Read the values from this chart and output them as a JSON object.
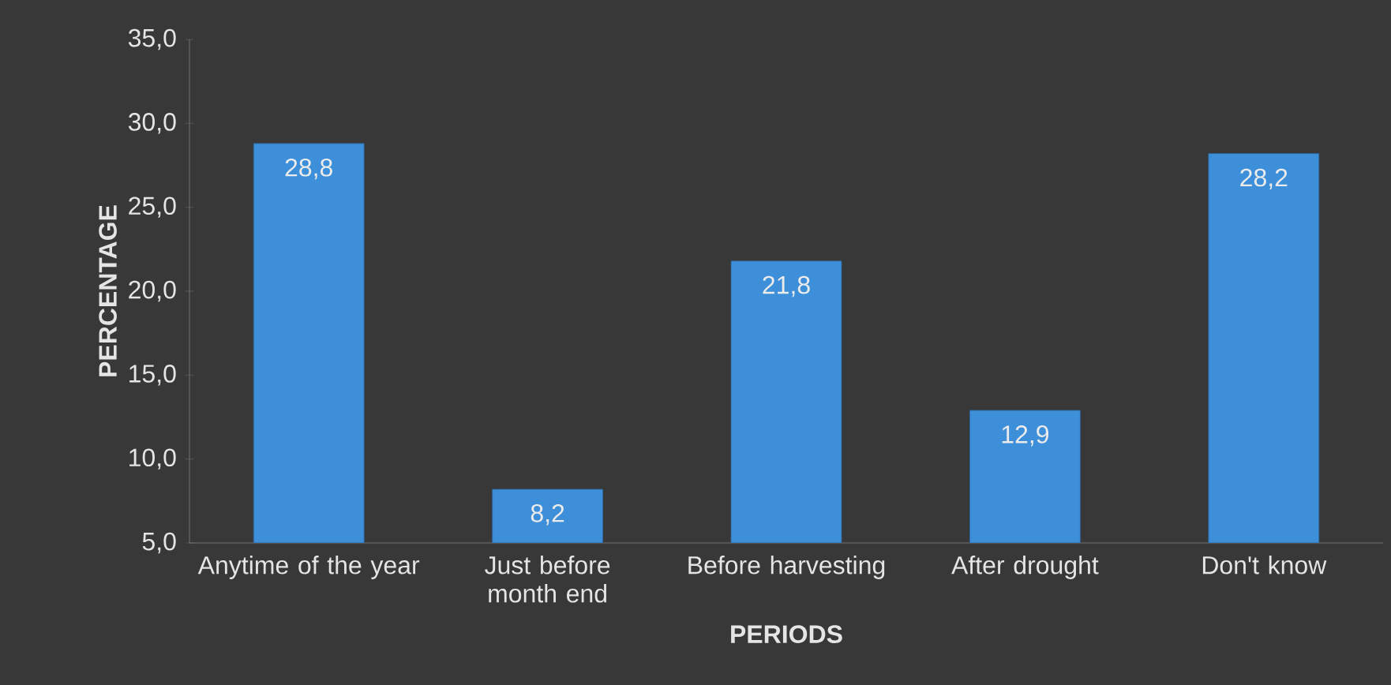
{
  "chart_data": {
    "type": "bar",
    "xlabel": "PERIODS",
    "ylabel": "PERCENTAGE",
    "categories": [
      "Anytime of the year",
      "Just before month end",
      "Before harvesting",
      "After drought",
      "Don't know"
    ],
    "values": [
      28.8,
      8.2,
      21.8,
      12.9,
      28.2
    ],
    "value_labels": [
      "28,8",
      "8,2",
      "21,8",
      "12,9",
      "28,2"
    ],
    "color": "#3d8fd9",
    "ylim": [
      5,
      35
    ],
    "yticks": [
      {
        "value": 5,
        "label": "5,0"
      },
      {
        "value": 10,
        "label": "10,0"
      },
      {
        "value": 15,
        "label": "15,0"
      },
      {
        "value": 20,
        "label": "20,0"
      },
      {
        "value": 25,
        "label": "25,0"
      },
      {
        "value": 30,
        "label": "30,0"
      },
      {
        "value": 35,
        "label": "35,0"
      }
    ],
    "grid": false
  }
}
